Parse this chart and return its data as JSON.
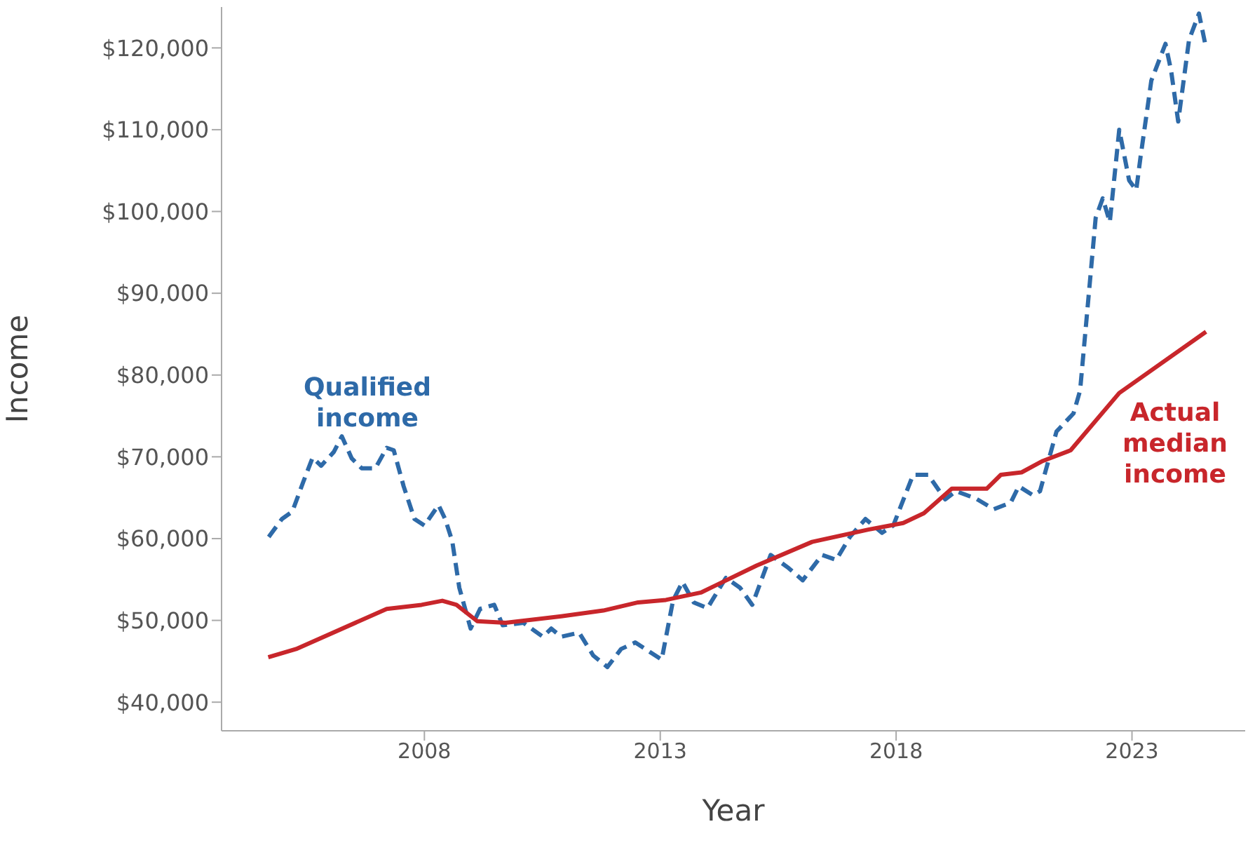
{
  "chart_data": {
    "type": "line",
    "xlabel": "Year",
    "ylabel": "Income",
    "xlim": [
      2003.7,
      2025.4
    ],
    "xticks": [
      2008,
      2013,
      2018,
      2023
    ],
    "ylim": [
      36500,
      125000
    ],
    "yticks": [
      {
        "value": 40000,
        "label": "$40,000"
      },
      {
        "value": 50000,
        "label": "$50,000"
      },
      {
        "value": 60000,
        "label": "$60,000"
      },
      {
        "value": 70000,
        "label": "$70,000"
      },
      {
        "value": 80000,
        "label": "$80,000"
      },
      {
        "value": 90000,
        "label": "$90,000"
      },
      {
        "value": 100000,
        "label": "$100,000"
      },
      {
        "value": 110000,
        "label": "$110,000"
      },
      {
        "value": 120000,
        "label": "$120,000"
      }
    ],
    "marker": "none",
    "series": [
      {
        "name": "Qualified income",
        "color": "#2e6aa8",
        "line_style": "dashed",
        "x": [
          2004.7,
          2004.98,
          2005.2,
          2005.43,
          2005.63,
          2005.81,
          2006.08,
          2006.25,
          2006.46,
          2006.67,
          2006.96,
          2007.2,
          2007.35,
          2007.56,
          2007.79,
          2008.0,
          2008.3,
          2008.44,
          2008.59,
          2008.74,
          2008.98,
          2009.18,
          2009.48,
          2009.66,
          2010.1,
          2010.51,
          2010.69,
          2010.9,
          2011.28,
          2011.58,
          2011.88,
          2012.17,
          2012.47,
          2013.03,
          2013.27,
          2013.47,
          2013.71,
          2014.0,
          2014.39,
          2014.69,
          2014.95,
          2015.34,
          2015.72,
          2016.02,
          2016.43,
          2016.73,
          2017.02,
          2017.35,
          2017.7,
          2017.94,
          2018.36,
          2018.68,
          2019.04,
          2019.27,
          2019.69,
          2020.07,
          2020.43,
          2020.6,
          2020.9,
          2021.05,
          2021.4,
          2021.76,
          2021.9,
          2022.23,
          2022.38,
          2022.53,
          2022.73,
          2022.94,
          2023.09,
          2023.18,
          2023.41,
          2023.71,
          2023.83,
          2023.98,
          2024.21,
          2024.42,
          2024.57
        ],
        "values": [
          60200,
          62400,
          63300,
          66900,
          69900,
          68900,
          70600,
          72500,
          69800,
          68600,
          68600,
          71100,
          70800,
          66400,
          62400,
          61600,
          64100,
          62400,
          59700,
          54000,
          49000,
          51400,
          51900,
          49400,
          49700,
          48000,
          49000,
          48000,
          48500,
          45700,
          44300,
          46500,
          47300,
          45200,
          52400,
          54700,
          52200,
          51500,
          55200,
          54000,
          51900,
          58000,
          56400,
          54900,
          58000,
          57400,
          60200,
          62400,
          60700,
          61600,
          67800,
          67800,
          64800,
          65800,
          64900,
          63600,
          64400,
          66400,
          65300,
          65800,
          73100,
          75300,
          78100,
          99200,
          101600,
          98700,
          110000,
          103800,
          102600,
          106600,
          116000,
          120500,
          117200,
          111000,
          121000,
          124200,
          120000
        ]
      },
      {
        "name": "Actual median income",
        "color": "#c8262b",
        "line_style": "solid",
        "x": [
          2004.69,
          2005.28,
          2007.2,
          2007.94,
          2008.38,
          2008.68,
          2009.12,
          2009.72,
          2010.9,
          2011.79,
          2012.53,
          2013.12,
          2013.86,
          2015.04,
          2016.22,
          2017.41,
          2018.15,
          2018.59,
          2019.18,
          2019.92,
          2020.22,
          2020.66,
          2021.11,
          2021.7,
          2022.73,
          2024.57
        ],
        "values": [
          45500,
          46500,
          51400,
          51900,
          52400,
          51900,
          49900,
          49700,
          50500,
          51200,
          52200,
          52500,
          53400,
          56700,
          59600,
          61100,
          61900,
          63100,
          66100,
          66100,
          67800,
          68100,
          69500,
          70800,
          77800,
          85300
        ]
      }
    ]
  }
}
